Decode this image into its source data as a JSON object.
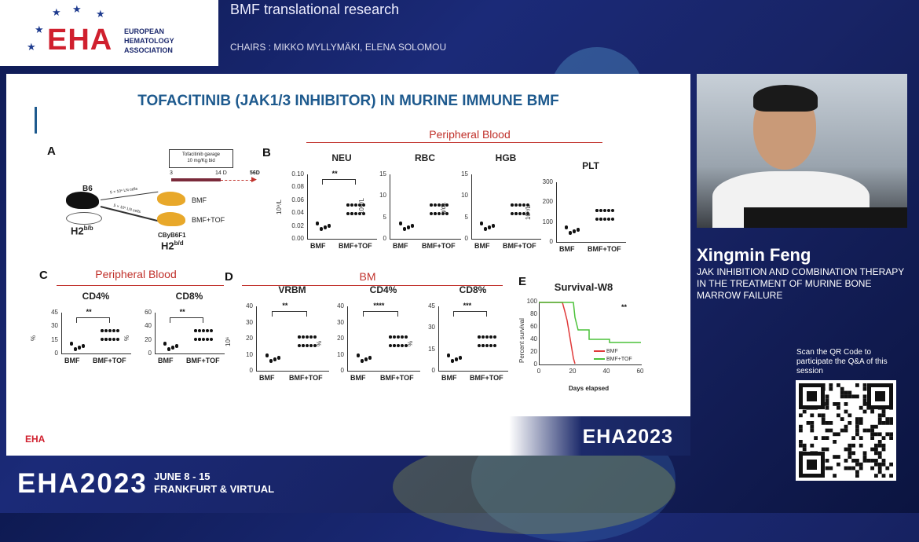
{
  "header": {
    "logo_text": "EHA",
    "logo_sub_1": "EUROPEAN",
    "logo_sub_2": "HEMATOLOGY",
    "logo_sub_3": "ASSOCIATION",
    "session_title": "BMF translational research",
    "chairs": "CHAIRS : MIKKO MYLLYMÄKI, ELENA SOLOMOU"
  },
  "slide": {
    "title": "TOFACITINIB (JAK1/3 INHIBITOR) IN MURINE IMMUNE BMF",
    "panel_a": {
      "label": "A",
      "gavage_line1": "Tofacitinib gavage",
      "gavage_line2": "10 mg/Kg bid",
      "day_start": "3",
      "day_mid": "14 D",
      "day_end": "56D",
      "donor": "B6",
      "donor_h2": "H2",
      "donor_sup": "b/b",
      "cells_1": "5 × 10⁶ LN cells",
      "cells_2": "5 × 10⁶ LN cells",
      "group_1": "BMF",
      "group_2": "BMF+TOF",
      "recipient": "CByB6F1",
      "recipient_h2": "H2",
      "recipient_sup": "b/d"
    },
    "panel_b": {
      "label": "B",
      "header": "Peripheral Blood",
      "plots": [
        {
          "title": "NEU",
          "ylabel": "10⁹/L",
          "ticks": [
            "0.10",
            "0.08",
            "0.06",
            "0.04",
            "0.02",
            "0.00"
          ],
          "sig": "**"
        },
        {
          "title": "RBC",
          "ylabel": "10¹²/L",
          "ticks": [
            "15",
            "10",
            "5",
            "0"
          ],
          "sig": ""
        },
        {
          "title": "HGB",
          "ylabel": "g/dL",
          "ticks": [
            "15",
            "10",
            "5",
            "0"
          ],
          "sig": ""
        },
        {
          "title": "PLT",
          "ylabel": "10⁹/L",
          "ticks": [
            "300",
            "200",
            "100",
            "0"
          ],
          "sig": ""
        }
      ]
    },
    "panel_c": {
      "label": "C",
      "header": "Peripheral Blood",
      "plots": [
        {
          "title": "CD4%",
          "ylabel": "%",
          "ticks": [
            "45",
            "30",
            "15",
            "0"
          ],
          "sig": "**"
        },
        {
          "title": "CD8%",
          "ylabel": "%",
          "ticks": [
            "60",
            "40",
            "20",
            "0"
          ],
          "sig": "**"
        }
      ]
    },
    "panel_d": {
      "label": "D",
      "header": "BM",
      "plots": [
        {
          "title": "VRBM",
          "ylabel": "10⁶",
          "ticks": [
            "40",
            "30",
            "20",
            "10",
            "0"
          ],
          "sig": "**"
        },
        {
          "title": "CD4%",
          "ylabel": "%",
          "ticks": [
            "40",
            "30",
            "20",
            "10",
            "0"
          ],
          "sig": "****"
        },
        {
          "title": "CD8%",
          "ylabel": "%",
          "ticks": [
            "45",
            "30",
            "15",
            "0"
          ],
          "sig": "***"
        }
      ]
    },
    "panel_e": {
      "label": "E",
      "title": "Survival-W8",
      "ylabel": "Percent survival",
      "xlabel": "Days elapsed",
      "yticks": [
        "100",
        "80",
        "60",
        "40",
        "20",
        "0"
      ],
      "xticks": [
        "0",
        "20",
        "40",
        "60"
      ],
      "sig": "**",
      "legend_1": "BMF",
      "legend_2": "BMF+TOF"
    },
    "categories": [
      "BMF",
      "BMF+TOF"
    ],
    "footer_logo": "EHA",
    "footer_text": "EHA2023"
  },
  "speaker": {
    "name": "Xingmin Feng",
    "talk": "JAK INHIBITION AND COMBINATION THERAPY IN THE TREATMENT OF MURINE BONE MARROW FAILURE"
  },
  "qr": {
    "text": "Scan the QR Code to participate the Q&A of this session"
  },
  "bottom": {
    "brand": "EHA2023",
    "date": "JUNE 8 - 15",
    "location": "FRANKFURT & VIRTUAL"
  },
  "colors": {
    "accent_red": "#c0302a",
    "title_blue": "#1e5a8e",
    "eha_red": "#d0202e",
    "bmf_red": "#e03a3a",
    "tof_green": "#4cc23a"
  }
}
